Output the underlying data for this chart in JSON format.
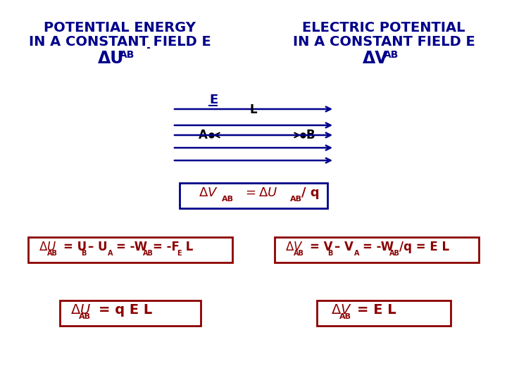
{
  "bg_color": "#ffffff",
  "dark_blue": "#00008B",
  "dark_red": "#8B0000",
  "title_left_line1": "POTENTIAL ENERGY",
  "title_left_line2": "IN A CONSTANT FIELD E",
  "title_left_line3": "ΔU",
  "title_left_line3_sub": "AB",
  "title_right_line1": "ELECTRIC POTENTIAL",
  "title_right_line2": "IN A CONSTANT FIELD E",
  "title_right_line3": "ΔV",
  "title_right_line3_sub": "AB",
  "field_label": "E",
  "L_label": "L",
  "A_label": "A",
  "B_label": "B",
  "center_box_text_main": "ΔV",
  "center_box_text_sub": "AB",
  "center_box_text_rest": " = ΔU",
  "center_box_text_sub2": "AB",
  "center_box_text_end": " / q",
  "left_box1_main": "ΔU",
  "left_box1_sub": "AB",
  "left_box1_rest": " = U",
  "left_box1_sub2": "B",
  "left_box1_rest2": " – U",
  "left_box1_sub3": "A",
  "left_box1_rest3": " = -W",
  "left_box1_sub4": "AB",
  "left_box1_rest4": " = -F",
  "left_box1_sub5": "E",
  "left_box1_rest5": " L",
  "right_box1_main": "ΔV",
  "right_box1_sub": "AB",
  "right_box1_rest": " = V",
  "right_box1_sub2": "B",
  "right_box1_rest2": " – V",
  "right_box1_sub3": "A",
  "right_box1_rest3": " = -W",
  "right_box1_sub4": "AB",
  "right_box1_rest4": "/q = E L",
  "left_box2_main": "ΔU",
  "left_box2_sub": "AB",
  "left_box2_rest": " = q E L",
  "right_box2_main": "ΔV",
  "right_box2_sub": "AB",
  "right_box2_rest": " = E L",
  "arrow_color": "#00008B",
  "ab_arrow_color": "#000000"
}
